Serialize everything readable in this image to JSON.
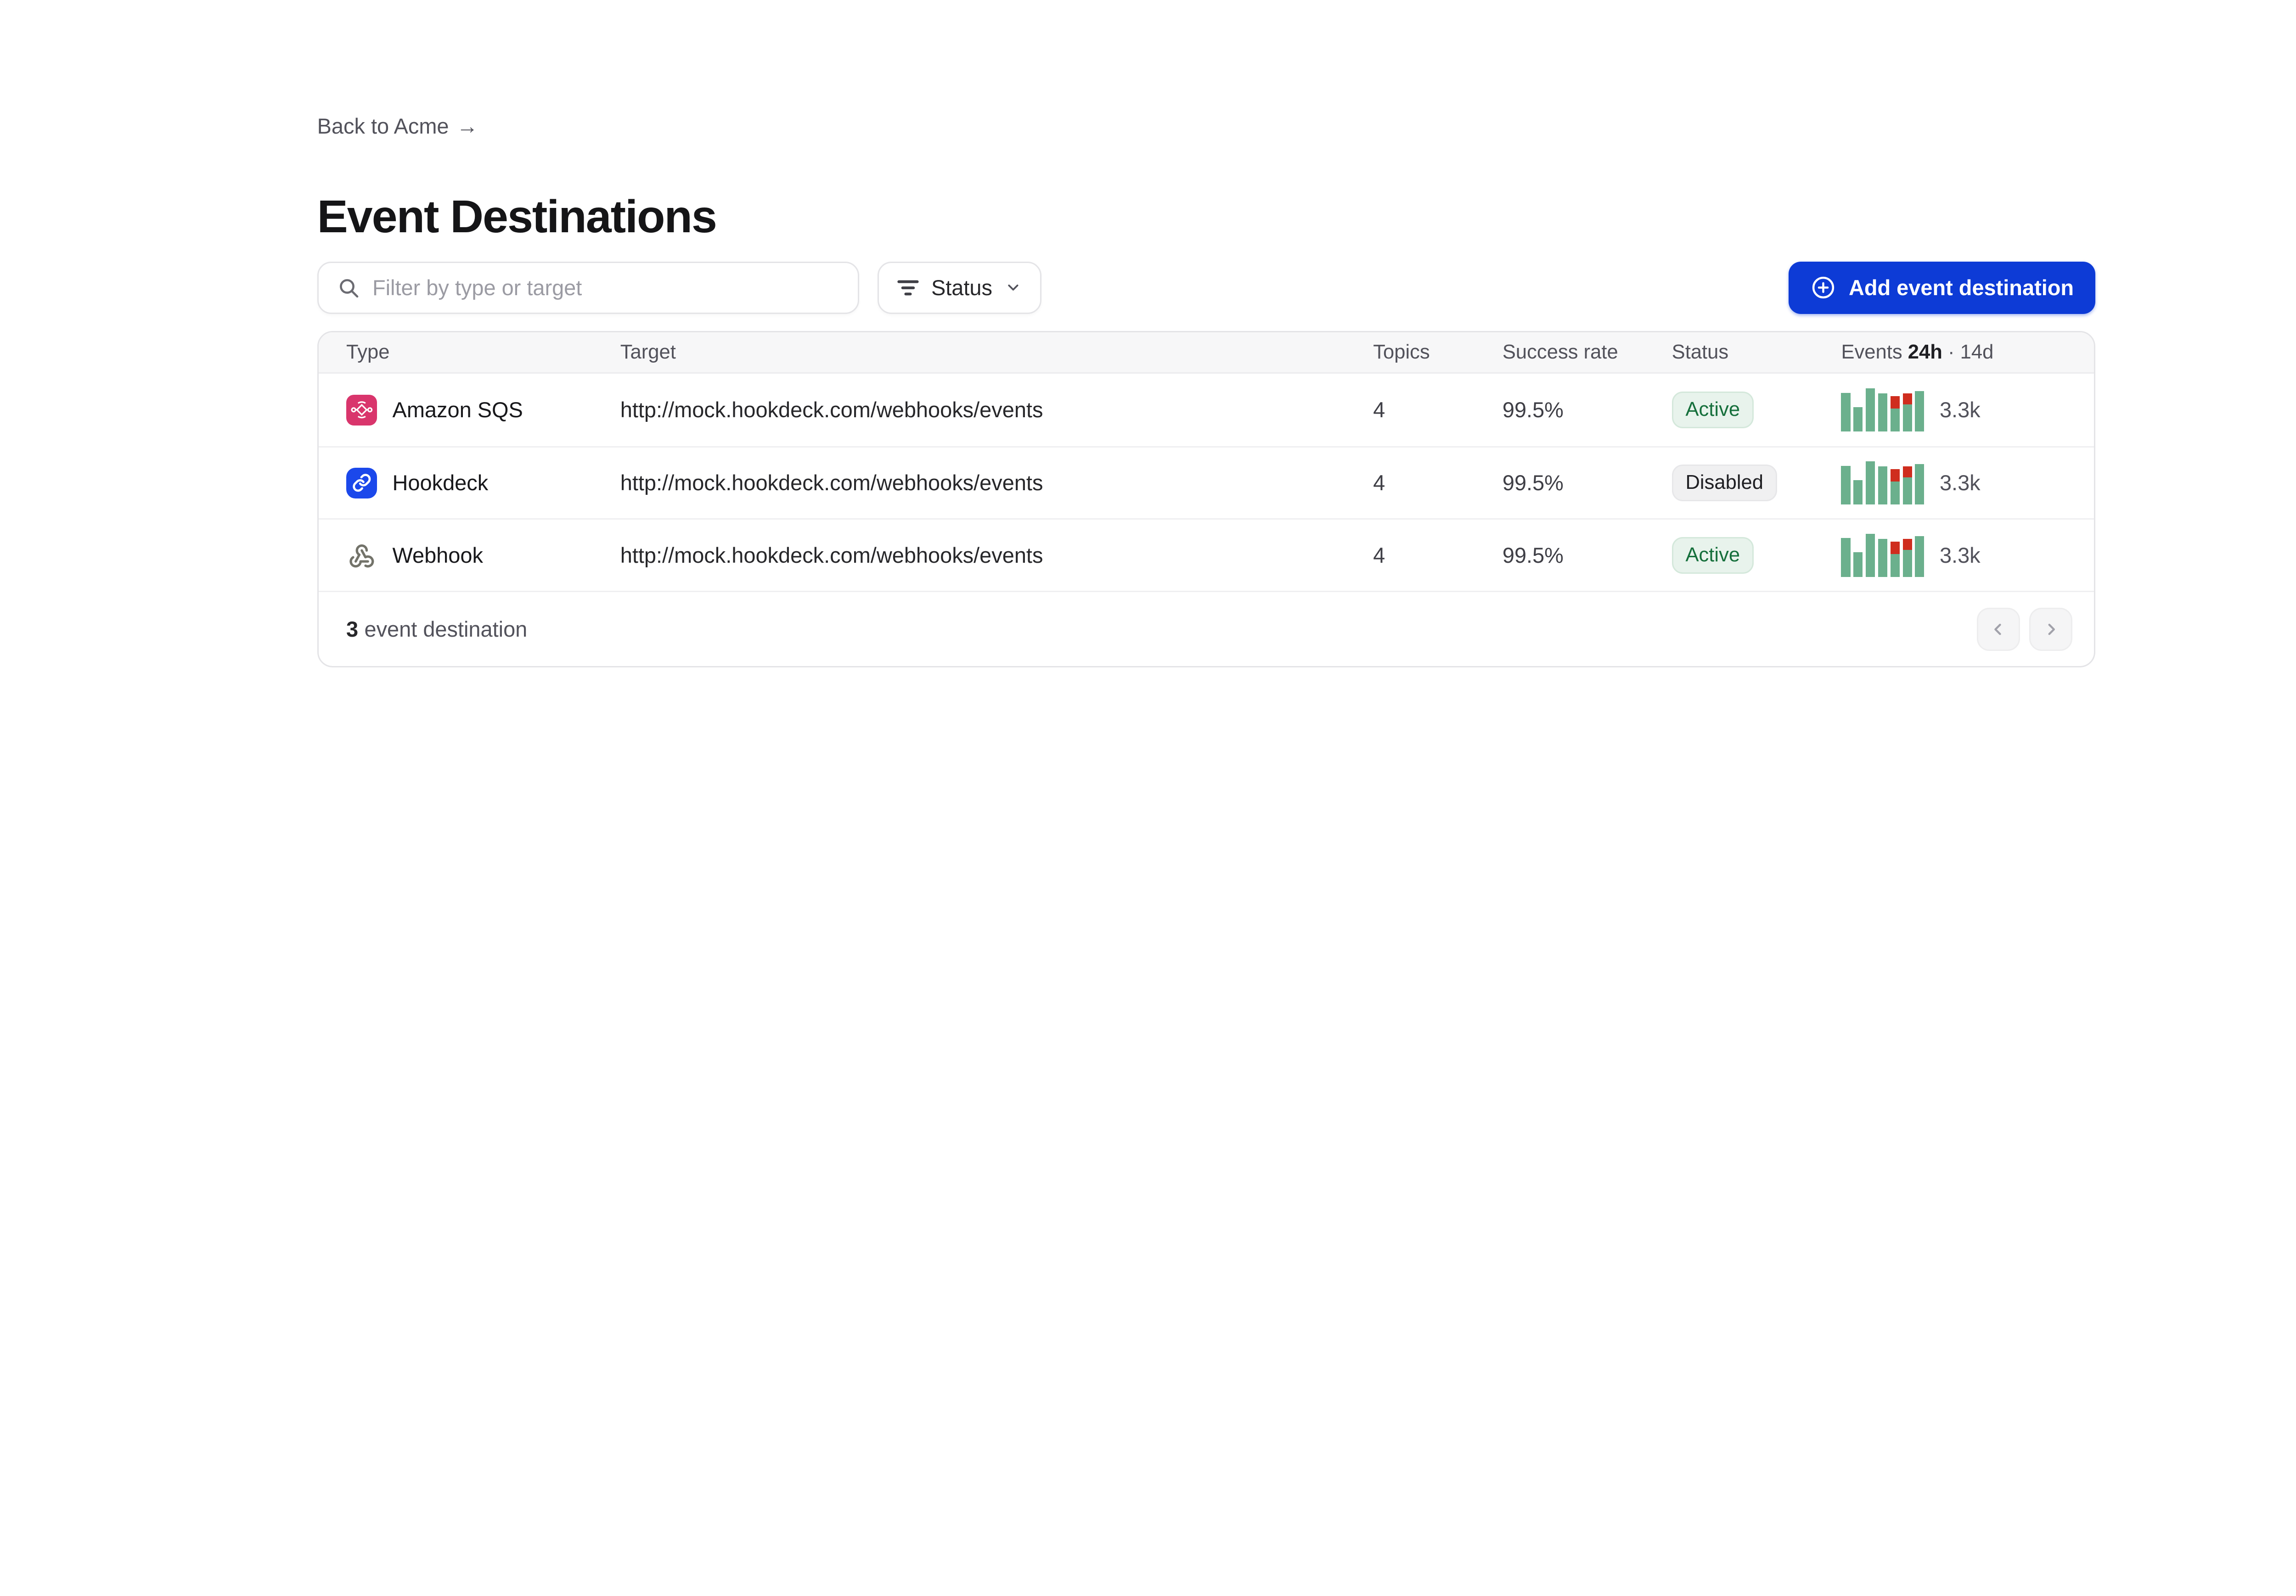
{
  "header": {
    "back_label": "Back to Acme",
    "back_arrow": "→",
    "title": "Event Destinations"
  },
  "toolbar": {
    "search_placeholder": "Filter by type or target",
    "status_label": "Status",
    "add_button_label": "Add event destination"
  },
  "table": {
    "columns": {
      "type": "Type",
      "target": "Target",
      "topics": "Topics",
      "success_rate": "Success rate",
      "status": "Status",
      "events_prefix": "Events",
      "events_bold": "24h",
      "events_suffix": "· 14d"
    },
    "rows": [
      {
        "type": "Amazon SQS",
        "icon": "amazon-sqs",
        "target": "http://mock.hookdeck.com/webhooks/events",
        "topics": "4",
        "success_rate": "99.5%",
        "status": "Active",
        "status_variant": "active",
        "events_count": "3.3k",
        "sparkline": [
          {
            "green": 0.9,
            "red": 0
          },
          {
            "green": 0.57,
            "red": 0
          },
          {
            "green": 1.0,
            "red": 0
          },
          {
            "green": 0.88,
            "red": 0
          },
          {
            "green": 0.53,
            "red": 0.29
          },
          {
            "green": 0.63,
            "red": 0.25
          },
          {
            "green": 0.94,
            "red": 0
          }
        ]
      },
      {
        "type": "Hookdeck",
        "icon": "hookdeck",
        "target": "http://mock.hookdeck.com/webhooks/events",
        "topics": "4",
        "success_rate": "99.5%",
        "status": "Disabled",
        "status_variant": "disabled",
        "events_count": "3.3k",
        "sparkline": [
          {
            "green": 0.9,
            "red": 0
          },
          {
            "green": 0.57,
            "red": 0
          },
          {
            "green": 1.0,
            "red": 0
          },
          {
            "green": 0.88,
            "red": 0
          },
          {
            "green": 0.53,
            "red": 0.29
          },
          {
            "green": 0.63,
            "red": 0.25
          },
          {
            "green": 0.94,
            "red": 0
          }
        ]
      },
      {
        "type": "Webhook",
        "icon": "webhook",
        "target": "http://mock.hookdeck.com/webhooks/events",
        "topics": "4",
        "success_rate": "99.5%",
        "status": "Active",
        "status_variant": "active",
        "events_count": "3.3k",
        "sparkline": [
          {
            "green": 0.9,
            "red": 0
          },
          {
            "green": 0.57,
            "red": 0
          },
          {
            "green": 1.0,
            "red": 0
          },
          {
            "green": 0.88,
            "red": 0
          },
          {
            "green": 0.53,
            "red": 0.29
          },
          {
            "green": 0.63,
            "red": 0.25
          },
          {
            "green": 0.94,
            "red": 0
          }
        ]
      }
    ]
  },
  "footer": {
    "count": "3",
    "label": "event destination"
  },
  "colors": {
    "accent_blue": "#0d3bd6",
    "hookdeck_blue": "#1b48eb",
    "sqs_pink": "#d9356c",
    "badge_active_bg": "#e8f3ec",
    "badge_active_text": "#156f3b",
    "badge_disabled_bg": "#f0f0f1",
    "spark_green": "#6bb08d",
    "spark_red": "#cf2d1e"
  }
}
